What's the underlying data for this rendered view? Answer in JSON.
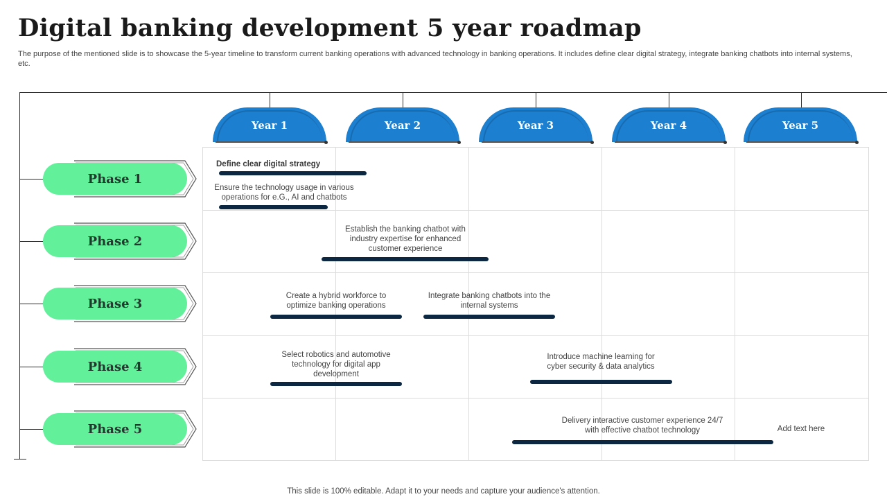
{
  "slide": {
    "title": "Digital banking development 5 year roadmap",
    "subtitle": "The purpose of the mentioned slide is to showcase the 5-year timeline to transform current banking operations with advanced technology in banking operations. It includes define clear digital strategy, integrate banking chatbots into internal systems, etc.",
    "footer": "This slide is 100% editable. Adapt it to your needs and capture your audience's attention."
  },
  "years": [
    "Year 1",
    "Year 2",
    "Year 3",
    "Year 4",
    "Year 5"
  ],
  "phases": [
    "Phase 1",
    "Phase 2",
    "Phase 3",
    "Phase 4",
    "Phase 5"
  ],
  "tasks": [
    {
      "text": "Define clear digital strategy"
    },
    {
      "text": "Ensure the technology usage in various operations for e.G., AI  and chatbots"
    },
    {
      "text": "Establish the banking chatbot with industry expertise for enhanced customer experience"
    },
    {
      "text": "Create a hybrid workforce to optimize banking operations"
    },
    {
      "text": "Integrate banking chatbots into the internal systems"
    },
    {
      "text": "Select robotics and automotive technology for digital app development"
    },
    {
      "text": "Introduce machine learning for cyber security & data analytics"
    },
    {
      "text": "Delivery interactive customer experience 24/7 with effective chatbot technology"
    },
    {
      "text": "Add text here"
    }
  ],
  "colors": {
    "year_fill": "#1d7fcf",
    "phase_fill": "#63f09b",
    "task_bar": "#0b2742"
  }
}
